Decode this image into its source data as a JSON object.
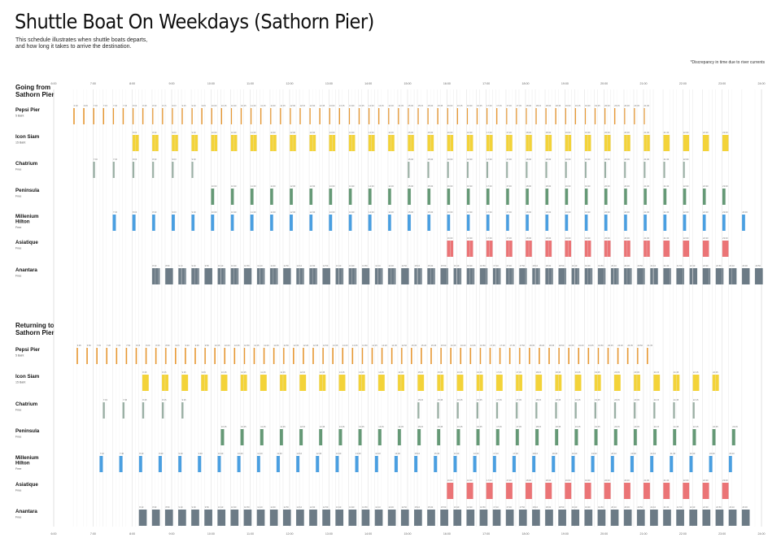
{
  "title": "Shuttle Boat On Weekdays (Sathorn Pier)",
  "subtitle": [
    "This schedule illustrates when shuttle boats departs,",
    "and how long it takes to arrive the destination."
  ],
  "note": "*Discrepancy in time due to river currents",
  "chart_data": {
    "type": "timeline",
    "time_axis": {
      "start": "6:00",
      "end": "24:00",
      "tick_every_minutes": 60
    },
    "sections": [
      {
        "name": "Going from Sathorn Pier",
        "lines": [
          "Going from",
          "Sathorn Pier"
        ],
        "rows": [
          {
            "name": "Pepsi Pier",
            "name_lines": [
              "Pepsi Pier"
            ],
            "sub": "5 Baht",
            "color": "#e58f22",
            "start": "6:30",
            "end": "21:00",
            "every": 15,
            "duration": 1
          },
          {
            "name": "Icon Siam",
            "name_lines": [
              "Icon Siam"
            ],
            "sub": "15 Baht",
            "color": "#f2cf28",
            "start": "8:00",
            "end": "23:00",
            "every": 30,
            "duration": 10
          },
          {
            "name": "Chatrium",
            "name_lines": [
              "Chatrium"
            ],
            "sub": "Free",
            "color": "#93a99d",
            "start": "7:00",
            "end": "22:00",
            "every": 30,
            "duration": 3,
            "skip_between": [
              "9:30",
              "15:00"
            ]
          },
          {
            "name": "Peninsula",
            "name_lines": [
              "Peninsula"
            ],
            "sub": "Free",
            "color": "#58906a",
            "start": "10:00",
            "end": "23:00",
            "every": 30,
            "duration": 5
          },
          {
            "name": "Millenium Hilton",
            "name_lines": [
              "Millenium",
              "Hilton"
            ],
            "sub": "Free",
            "color": "#3b97de",
            "start": "7:30",
            "end": "23:30",
            "every": 30,
            "duration": 5
          },
          {
            "name": "Asiatique",
            "name_lines": [
              "Asiatique"
            ],
            "sub": "Free",
            "color": "#e9686a",
            "start": "16:00",
            "end": "23:00",
            "every": 30,
            "duration": 10
          },
          {
            "name": "Anantara",
            "name_lines": [
              "Anantara"
            ],
            "sub": "Free",
            "color": "#5f707c",
            "start": "8:30",
            "end": "24:00",
            "every": 20,
            "duration": 12
          }
        ]
      },
      {
        "name": "Returning to Sathorn Pier",
        "lines": [
          "Returning to",
          "Sathorn Pier"
        ],
        "rows": [
          {
            "name": "Pepsi Pier",
            "name_lines": [
              "Pepsi Pier"
            ],
            "sub": "5 Baht",
            "color": "#e58f22",
            "start": "6:35",
            "end": "21:05",
            "every": 15,
            "duration": 1
          },
          {
            "name": "Icon Siam",
            "name_lines": [
              "Icon Siam"
            ],
            "sub": "15 Baht",
            "color": "#f2cf28",
            "start": "8:15",
            "end": "22:45",
            "every": 30,
            "duration": 10
          },
          {
            "name": "Chatrium",
            "name_lines": [
              "Chatrium"
            ],
            "sub": "Free",
            "color": "#93a99d",
            "start": "7:15",
            "end": "22:15",
            "every": 30,
            "duration": 3,
            "skip_between": [
              "9:40",
              "15:10"
            ]
          },
          {
            "name": "Peninsula",
            "name_lines": [
              "Peninsula"
            ],
            "sub": "Free",
            "color": "#58906a",
            "start": "10:15",
            "end": "23:15",
            "every": 30,
            "duration": 5
          },
          {
            "name": "Millenium Hilton",
            "name_lines": [
              "Millenium",
              "Hilton"
            ],
            "sub": "Free",
            "color": "#3b97de",
            "start": "7:10",
            "end": "23:10",
            "every": 30,
            "duration": 5
          },
          {
            "name": "Asiatique",
            "name_lines": [
              "Asiatique"
            ],
            "sub": "Free",
            "color": "#e9686a",
            "start": "16:00",
            "end": "23:00",
            "every": 30,
            "duration": 10
          },
          {
            "name": "Anantara",
            "name_lines": [
              "Anantara"
            ],
            "sub": "Free",
            "color": "#5f707c",
            "start": "8:10",
            "end": "23:30",
            "every": 20,
            "duration": 12
          }
        ]
      }
    ]
  }
}
